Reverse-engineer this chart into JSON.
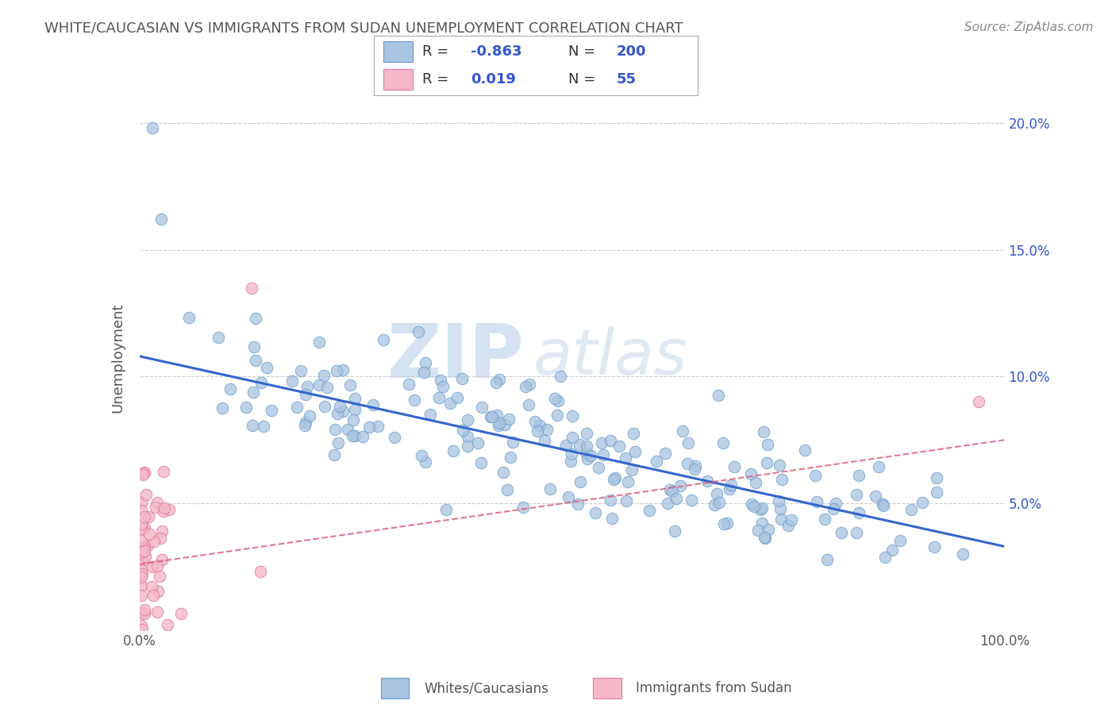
{
  "title": "WHITE/CAUCASIAN VS IMMIGRANTS FROM SUDAN UNEMPLOYMENT CORRELATION CHART",
  "source": "Source: ZipAtlas.com",
  "ylabel": "Unemployment",
  "blue_R": "-0.863",
  "blue_N": "200",
  "pink_R": "0.019",
  "pink_N": "55",
  "blue_color": "#a8c4e0",
  "blue_edge_color": "#6699cc",
  "blue_line_color": "#3366cc",
  "pink_color": "#f4b8c8",
  "pink_edge_color": "#dd7799",
  "pink_line_color": "#dd5577",
  "legend_label_blue": "Whites/Caucasians",
  "legend_label_pink": "Immigrants from Sudan",
  "watermark_zip": "ZIP",
  "watermark_atlas": "atlas",
  "xlim": [
    0.0,
    1.0
  ],
  "ylim": [
    0.0,
    0.215
  ],
  "blue_trend_x0": 0.0,
  "blue_trend_y0": 0.108,
  "blue_trend_x1": 1.0,
  "blue_trend_y1": 0.033,
  "pink_trend_x0": 0.0,
  "pink_trend_y0": 0.026,
  "pink_trend_x1": 1.0,
  "pink_trend_y1": 0.075,
  "background_color": "#ffffff",
  "grid_color": "#cccccc",
  "title_color": "#555555",
  "source_color": "#888888",
  "rn_color": "#3355cc",
  "label_color": "#555555"
}
